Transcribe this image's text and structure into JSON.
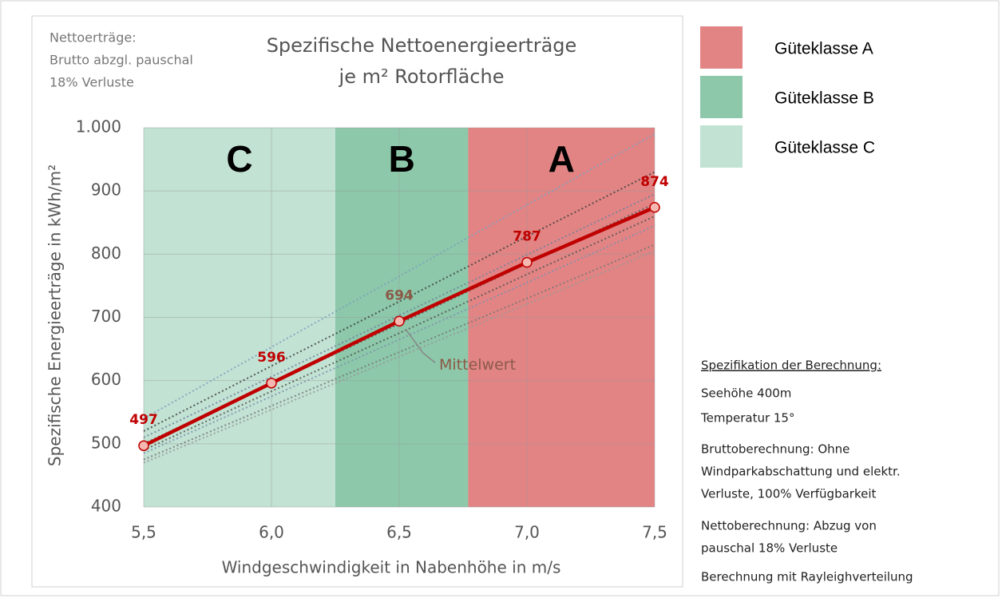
{
  "chart_data": {
    "type": "line",
    "title": [
      "Spezifische Nettoenergieerträge",
      "je m² Rotorfläche"
    ],
    "note": [
      "Nettoerträge:",
      "Brutto abzgl. pauschal",
      "18% Verluste"
    ],
    "xlabel": "Windgeschwindigkeit in Nabenhöhe in m/s",
    "ylabel": "Spezifische Energieerträge in kWh/m²",
    "x": [
      5.5,
      6.0,
      6.5,
      7.0,
      7.5
    ],
    "xlim": [
      5.5,
      7.5
    ],
    "xticks": [
      {
        "value": 5.5,
        "label": "5,5"
      },
      {
        "value": 6.0,
        "label": "6,0"
      },
      {
        "value": 6.5,
        "label": "6,5"
      },
      {
        "value": 7.0,
        "label": "7,0"
      },
      {
        "value": 7.5,
        "label": "7,5"
      }
    ],
    "ylim": [
      400,
      1000
    ],
    "yticks": [
      400,
      500,
      600,
      700,
      800,
      900,
      {
        "value": 1000,
        "label": "1.000"
      }
    ],
    "grid": true,
    "bands": [
      {
        "label": "C",
        "from": 5.5,
        "to": 6.25,
        "color": "#c2e2d3"
      },
      {
        "label": "B",
        "from": 6.25,
        "to": 6.77,
        "color": "#8cc8a9"
      },
      {
        "label": "A",
        "from": 6.77,
        "to": 7.5,
        "color": "#e28484"
      }
    ],
    "legend": [
      {
        "label": "Güteklasse A",
        "color": "#e28484"
      },
      {
        "label": "Güteklasse B",
        "color": "#8cc8a9"
      },
      {
        "label": "Güteklasse C",
        "color": "#c2e2d3"
      }
    ],
    "series": [
      {
        "name": "Mittelwert",
        "color": "#c00000",
        "values": [
          497,
          596,
          694,
          787,
          874
        ],
        "label_colors": [
          "#c00000",
          "#c00000",
          "#8b5a48",
          "#c00000",
          "#c00000"
        ]
      },
      {
        "color": "#7f9fc0",
        "style": "dotted",
        "values": [
          540,
          653,
          765,
          878,
          990
        ]
      },
      {
        "color": "#404040",
        "style": "dotted",
        "values": [
          520,
          623,
          725,
          828,
          930
        ]
      },
      {
        "color": "#7080a0",
        "style": "dotted",
        "values": [
          510,
          606,
          703,
          799,
          895
        ]
      },
      {
        "color": "#606060",
        "style": "dotted",
        "values": [
          500,
          595,
          690,
          785,
          880
        ]
      },
      {
        "color": "#555555",
        "style": "dotted",
        "values": [
          490,
          583,
          675,
          768,
          860
        ]
      },
      {
        "color": "#8090b0",
        "style": "dotted",
        "values": [
          485,
          575,
          665,
          755,
          845
        ]
      },
      {
        "color": "#777777",
        "style": "dotted",
        "values": [
          475,
          560,
          645,
          730,
          815
        ]
      },
      {
        "color": "#999999",
        "style": "dotted",
        "values": [
          470,
          554,
          638,
          721,
          805
        ]
      }
    ]
  },
  "specification": {
    "heading": "Spezifikation der Berechnung:",
    "lines": [
      "Seehöhe 400m",
      "Temperatur 15°",
      "Bruttoberechnung: Ohne",
      "Windparkabschattung und elektr.",
      "Verluste, 100% Verfügbarkeit",
      "Nettoberechnung: Abzug von",
      "pauschal 18% Verluste",
      "Berechnung mit Rayleighverteilung"
    ]
  }
}
